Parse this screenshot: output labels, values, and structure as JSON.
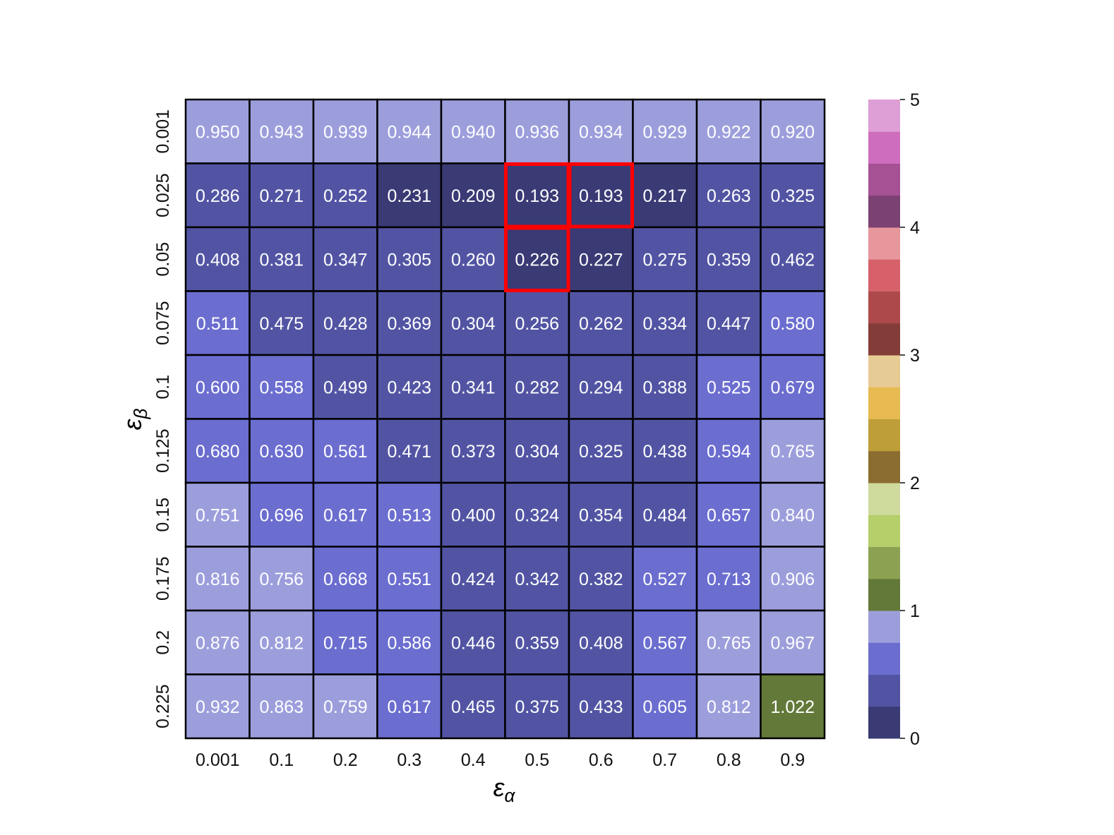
{
  "chart_data": {
    "type": "heatmap",
    "title": "",
    "xlabel": "ε",
    "xlabel_sub": "α",
    "ylabel": "ε",
    "ylabel_sub": "β",
    "x_categories": [
      "0.001",
      "0.1",
      "0.2",
      "0.3",
      "0.4",
      "0.5",
      "0.6",
      "0.7",
      "0.8",
      "0.9"
    ],
    "y_categories": [
      "0.001",
      "0.025",
      "0.05",
      "0.075",
      "0.1",
      "0.125",
      "0.15",
      "0.175",
      "0.2",
      "0.225"
    ],
    "values": [
      [
        0.95,
        0.943,
        0.939,
        0.944,
        0.94,
        0.936,
        0.934,
        0.929,
        0.922,
        0.92
      ],
      [
        0.286,
        0.271,
        0.252,
        0.231,
        0.209,
        0.193,
        0.193,
        0.217,
        0.263,
        0.325
      ],
      [
        0.408,
        0.381,
        0.347,
        0.305,
        0.26,
        0.226,
        0.227,
        0.275,
        0.359,
        0.462
      ],
      [
        0.511,
        0.475,
        0.428,
        0.369,
        0.304,
        0.256,
        0.262,
        0.334,
        0.447,
        0.58
      ],
      [
        0.6,
        0.558,
        0.499,
        0.423,
        0.341,
        0.282,
        0.294,
        0.388,
        0.525,
        0.679
      ],
      [
        0.68,
        0.63,
        0.561,
        0.471,
        0.373,
        0.304,
        0.325,
        0.438,
        0.594,
        0.765
      ],
      [
        0.751,
        0.696,
        0.617,
        0.513,
        0.4,
        0.324,
        0.354,
        0.484,
        0.657,
        0.84
      ],
      [
        0.816,
        0.756,
        0.668,
        0.551,
        0.424,
        0.342,
        0.382,
        0.527,
        0.713,
        0.906
      ],
      [
        0.876,
        0.812,
        0.715,
        0.586,
        0.446,
        0.359,
        0.408,
        0.567,
        0.765,
        0.967
      ],
      [
        0.932,
        0.863,
        0.759,
        0.617,
        0.465,
        0.375,
        0.433,
        0.605,
        0.812,
        1.022
      ]
    ],
    "value_format_decimals": 3,
    "highlighted_cells": [
      [
        1,
        5
      ],
      [
        1,
        6
      ],
      [
        2,
        5
      ]
    ],
    "highlight_color": "#ff0000",
    "colorbar": {
      "range": [
        0,
        5
      ],
      "ticks": [
        "0",
        "1",
        "2",
        "3",
        "4",
        "5"
      ],
      "bin_width": 0.25,
      "colors": [
        "#3a3a75",
        "#5254a3",
        "#6b6ecf",
        "#9c9edc",
        "#637939",
        "#8ca252",
        "#b5cf6b",
        "#cedb9c",
        "#8c6d31",
        "#bd9e39",
        "#e7ba52",
        "#e7cb94",
        "#843c39",
        "#ad494a",
        "#d6616b",
        "#e7969c",
        "#7b4173",
        "#a55194",
        "#ce6dbd",
        "#de9ed6"
      ]
    },
    "annotation_color": "#ffffff",
    "grid_line_color": "#000000"
  }
}
